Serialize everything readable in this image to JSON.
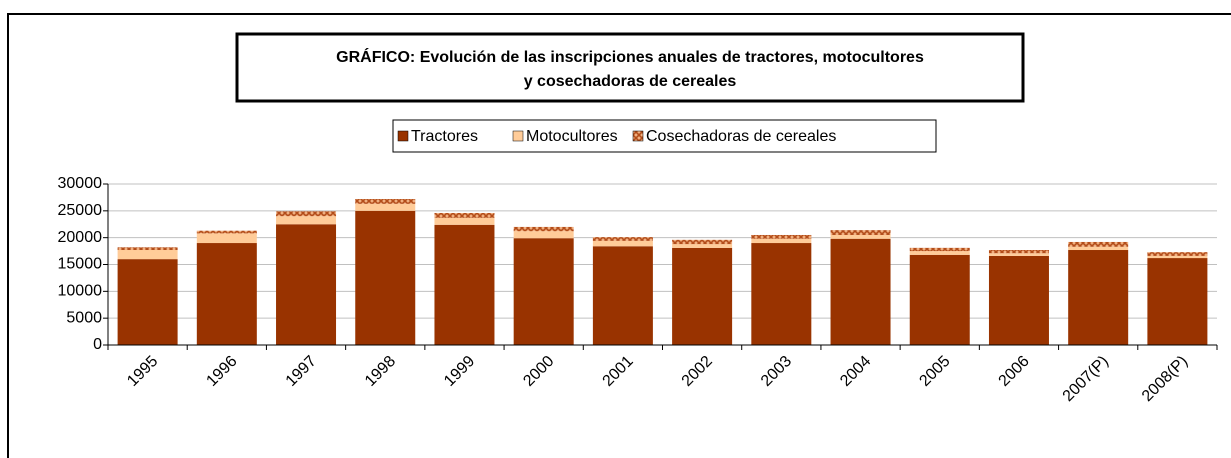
{
  "chart_data": {
    "type": "stacked_bar",
    "title": [
      "GRÁFICO: Evolución de las inscripciones anuales de tractores, motocultores",
      "y cosechadoras de cereales"
    ],
    "categories": [
      "1995",
      "1996",
      "1997",
      "1998",
      "1999",
      "2000",
      "2001",
      "2002",
      "2003",
      "2004",
      "2005",
      "2006",
      "2007(P)",
      "2008(P)"
    ],
    "series": [
      {
        "name": "Tractores",
        "color": "#993300",
        "values": [
          16000,
          19000,
          22500,
          25000,
          22400,
          19900,
          18400,
          18100,
          19000,
          19800,
          16800,
          16600,
          17700,
          16200
        ]
      },
      {
        "name": "Motocultores",
        "color": "#ffcc99",
        "values": [
          1700,
          1800,
          1500,
          1300,
          1300,
          1300,
          1000,
          700,
          800,
          700,
          700,
          500,
          600,
          400
        ]
      },
      {
        "name": "Cosechadoras de cereales",
        "color": "#cc6633",
        "pattern": "crosshatch",
        "values": [
          500,
          500,
          900,
          900,
          900,
          800,
          700,
          800,
          700,
          900,
          600,
          600,
          900,
          700
        ]
      }
    ],
    "ylim": [
      0,
      30000
    ],
    "yticks": [
      0,
      5000,
      10000,
      15000,
      20000,
      25000,
      30000
    ],
    "grid": true,
    "legend": "top"
  }
}
